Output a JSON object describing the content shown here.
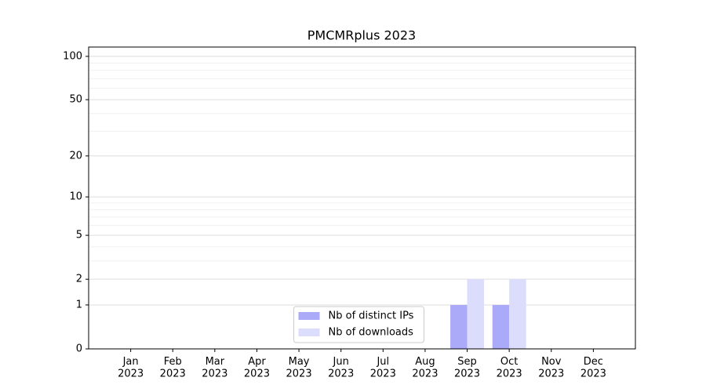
{
  "chart_data": {
    "type": "bar",
    "title": "PMCMRplus 2023",
    "categories": [
      "Jan\n2023",
      "Feb\n2023",
      "Mar\n2023",
      "Apr\n2023",
      "May\n2023",
      "Jun\n2023",
      "Jul\n2023",
      "Aug\n2023",
      "Sep\n2023",
      "Oct\n2023",
      "Nov\n2023",
      "Dec\n2023"
    ],
    "series": [
      {
        "name": "Nb of distinct IPs",
        "color": "#aaaaf8",
        "values": [
          0,
          0,
          0,
          0,
          0,
          0,
          0,
          0,
          1,
          1,
          0,
          0
        ]
      },
      {
        "name": "Nb of downloads",
        "color": "#dcdcfc",
        "values": [
          0,
          0,
          0,
          0,
          0,
          0,
          0,
          0,
          2,
          2,
          0,
          0
        ]
      }
    ],
    "yscale": "log1p",
    "ylim": [
      0,
      116
    ],
    "yticks": [
      0,
      1,
      2,
      5,
      10,
      20,
      50,
      100
    ],
    "minor_yticks": [
      3,
      4,
      6,
      7,
      8,
      9,
      30,
      40,
      60,
      70,
      80,
      90
    ],
    "grid": true,
    "legend": "lower center"
  }
}
